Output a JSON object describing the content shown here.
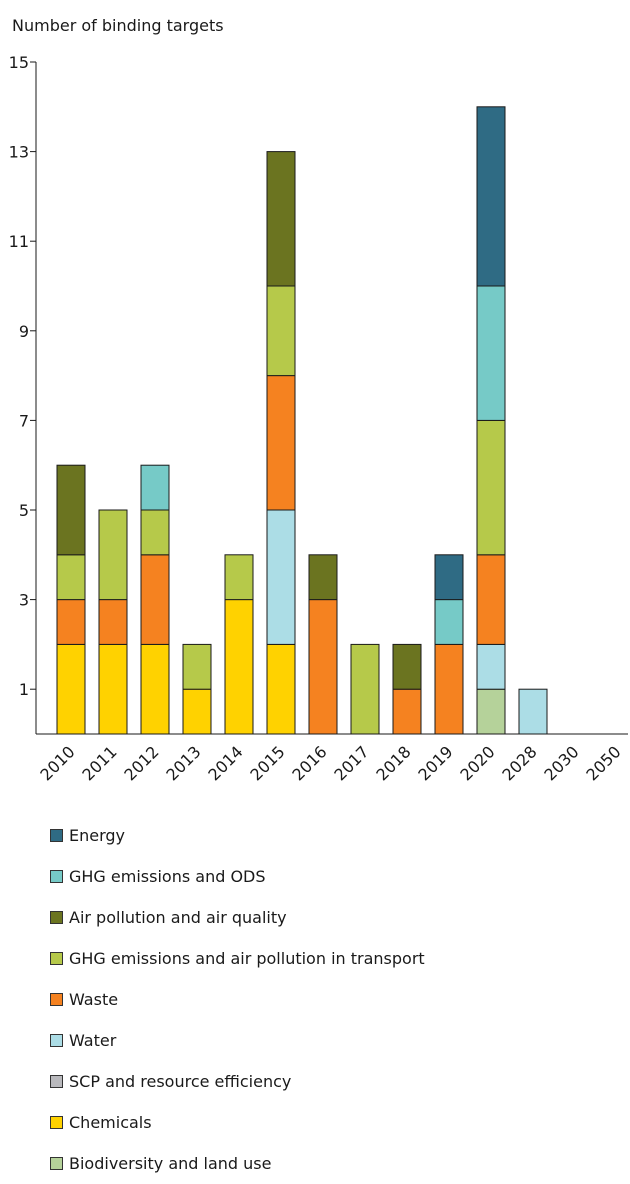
{
  "chart_data": {
    "type": "bar",
    "stacked": true,
    "title": "",
    "ylabel": "Number of binding targets",
    "xlabel": "",
    "ylim": [
      0,
      15
    ],
    "yticks": [
      1,
      3,
      5,
      7,
      9,
      11,
      13,
      15
    ],
    "categories": [
      "2010",
      "2011",
      "2012",
      "2013",
      "2014",
      "2015",
      "2016",
      "2017",
      "2018",
      "2019",
      "2020",
      "2028",
      "2030",
      "2050"
    ],
    "series": [
      {
        "name": "Biodiversity and land use",
        "color": "#b5d29a",
        "values": [
          0,
          0,
          0,
          0,
          0,
          0,
          0,
          0,
          0,
          0,
          1,
          0,
          0,
          0
        ]
      },
      {
        "name": "Chemicals",
        "color": "#ffd200",
        "values": [
          2,
          2,
          2,
          1,
          3,
          2,
          0,
          0,
          0,
          0,
          0,
          0,
          0,
          0
        ]
      },
      {
        "name": "SCP and resource efficiency",
        "color": "#b9b9bd",
        "values": [
          0,
          0,
          0,
          0,
          0,
          0,
          0,
          0,
          0,
          0,
          0,
          0,
          0,
          0
        ]
      },
      {
        "name": "Water",
        "color": "#acdde6",
        "values": [
          0,
          0,
          0,
          0,
          0,
          3,
          0,
          0,
          0,
          0,
          1,
          1,
          0,
          0
        ]
      },
      {
        "name": "Waste",
        "color": "#f58220",
        "values": [
          1,
          1,
          2,
          0,
          0,
          3,
          3,
          0,
          1,
          2,
          2,
          0,
          0,
          0
        ]
      },
      {
        "name": "GHG emissions and air pollution in transport",
        "color": "#b6c94a",
        "values": [
          1,
          2,
          1,
          1,
          1,
          2,
          0,
          2,
          0,
          0,
          3,
          0,
          0,
          0
        ]
      },
      {
        "name": "Air pollution and air quality",
        "color": "#6b7420",
        "values": [
          2,
          0,
          0,
          0,
          0,
          3,
          1,
          0,
          1,
          0,
          0,
          0,
          0,
          0
        ]
      },
      {
        "name": "GHG emissions and ODS",
        "color": "#76cac7",
        "values": [
          0,
          0,
          1,
          0,
          0,
          0,
          0,
          0,
          0,
          1,
          3,
          0,
          0,
          0
        ]
      },
      {
        "name": "Energy",
        "color": "#2f6b84",
        "values": [
          0,
          0,
          0,
          0,
          0,
          0,
          0,
          0,
          0,
          1,
          4,
          0,
          0,
          0
        ]
      }
    ],
    "legend": {
      "placement": "bottom",
      "order": [
        "Energy",
        "GHG emissions and ODS",
        "Air pollution and air quality",
        "GHG emissions and air pollution in transport",
        "Waste",
        "Water",
        "SCP and resource efficiency",
        "Chemicals",
        "Biodiversity and land use"
      ]
    }
  }
}
